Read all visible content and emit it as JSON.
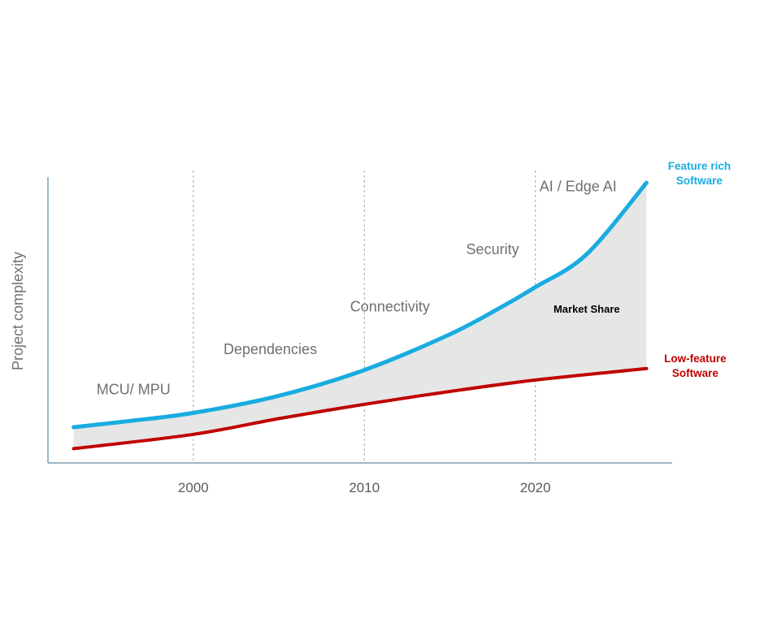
{
  "chart_data": {
    "type": "area",
    "ylabel": "Project complexity",
    "xlabel": "",
    "x_ticks": [
      "2000",
      "2010",
      "2020"
    ],
    "x_tick_values": [
      2000,
      2010,
      2020
    ],
    "xlim": [
      1991.5,
      2028
    ],
    "ylim": [
      0,
      100
    ],
    "y_ticks_shown": false,
    "gridlines": "vertical dashed at ticks",
    "series": [
      {
        "name": "Feature rich Software",
        "color": "#19ace0",
        "points": [
          [
            1993,
            12.5
          ],
          [
            1996,
            14.5
          ],
          [
            2000,
            17.5
          ],
          [
            2005,
            23.5
          ],
          [
            2010,
            32.5
          ],
          [
            2015,
            45
          ],
          [
            2018,
            54.5
          ],
          [
            2020,
            61.5
          ],
          [
            2023,
            73
          ],
          [
            2026.5,
            98
          ]
        ]
      },
      {
        "name": "Low-feature Software",
        "color": "#c00000",
        "points": [
          [
            1993,
            5
          ],
          [
            2000,
            10
          ],
          [
            2005,
            15.5
          ],
          [
            2010,
            20.5
          ],
          [
            2015,
            25
          ],
          [
            2020,
            29
          ],
          [
            2026.5,
            33
          ]
        ]
      }
    ],
    "area": {
      "label": "Market Share",
      "color": "#e6e6e6",
      "between": [
        "Feature rich Software",
        "Low-feature Software"
      ]
    },
    "annotations": [
      {
        "text": "MCU/ MPU",
        "x": 1996.5,
        "y": 24
      },
      {
        "text": "Dependencies",
        "x": 2004.5,
        "y": 38
      },
      {
        "text": "Connectivity",
        "x": 2011.5,
        "y": 53
      },
      {
        "text": "Security",
        "x": 2017.5,
        "y": 73
      },
      {
        "text": "AI / Edge AI",
        "x": 2022.5,
        "y": 95
      }
    ],
    "series_labels": [
      {
        "lines": [
          "Feature rich",
          "Software"
        ],
        "color": "#19ace0"
      },
      {
        "lines": [
          "Low-feature",
          "Software"
        ],
        "color": "#c00000"
      }
    ],
    "area_label_position": {
      "x": 2023,
      "y": 52.5
    }
  }
}
